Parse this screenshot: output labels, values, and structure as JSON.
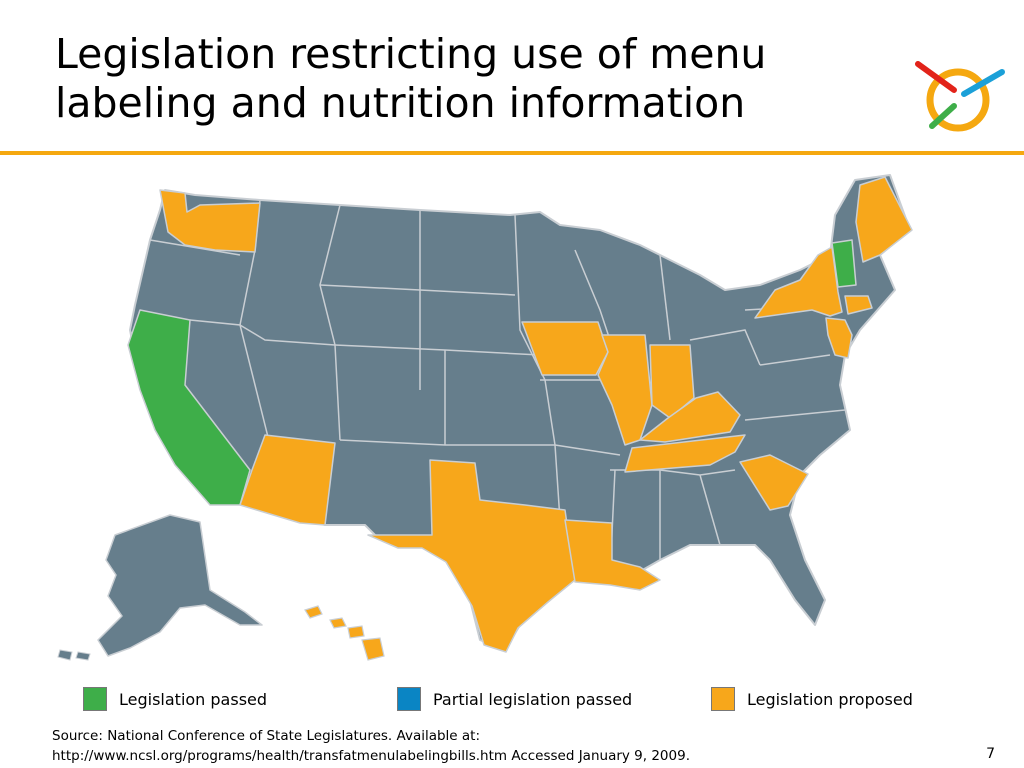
{
  "title": {
    "line1": "Legislation restricting use of menu",
    "line2": "labeling and nutrition information"
  },
  "colors": {
    "rule": "#F5A810",
    "passed": "#3EAE49",
    "partial": "#0A85C4",
    "proposed": "#F7A71B",
    "none": "#667E8C"
  },
  "legend": [
    {
      "label": "Legislation passed",
      "color": "#3EAE49"
    },
    {
      "label": "Partial legislation passed",
      "color": "#0A85C4"
    },
    {
      "label": "Legislation proposed",
      "color": "#F7A71B"
    }
  ],
  "states": {
    "passed": [
      "California",
      "Vermont"
    ],
    "proposed": [
      "Washington",
      "Arizona",
      "Texas",
      "Louisiana",
      "Iowa",
      "Illinois",
      "Indiana",
      "Kentucky",
      "Tennessee",
      "South Carolina",
      "New York",
      "New Jersey",
      "Connecticut",
      "Maine",
      "Hawaii"
    ]
  },
  "source": {
    "line1": "Source: National Conference of State Legislatures. Available at:",
    "line2": "http://www.ncsl.org/programs/health/transfatmenulabelingbills.htm Accessed January 9, 2009."
  },
  "page_number": "7"
}
